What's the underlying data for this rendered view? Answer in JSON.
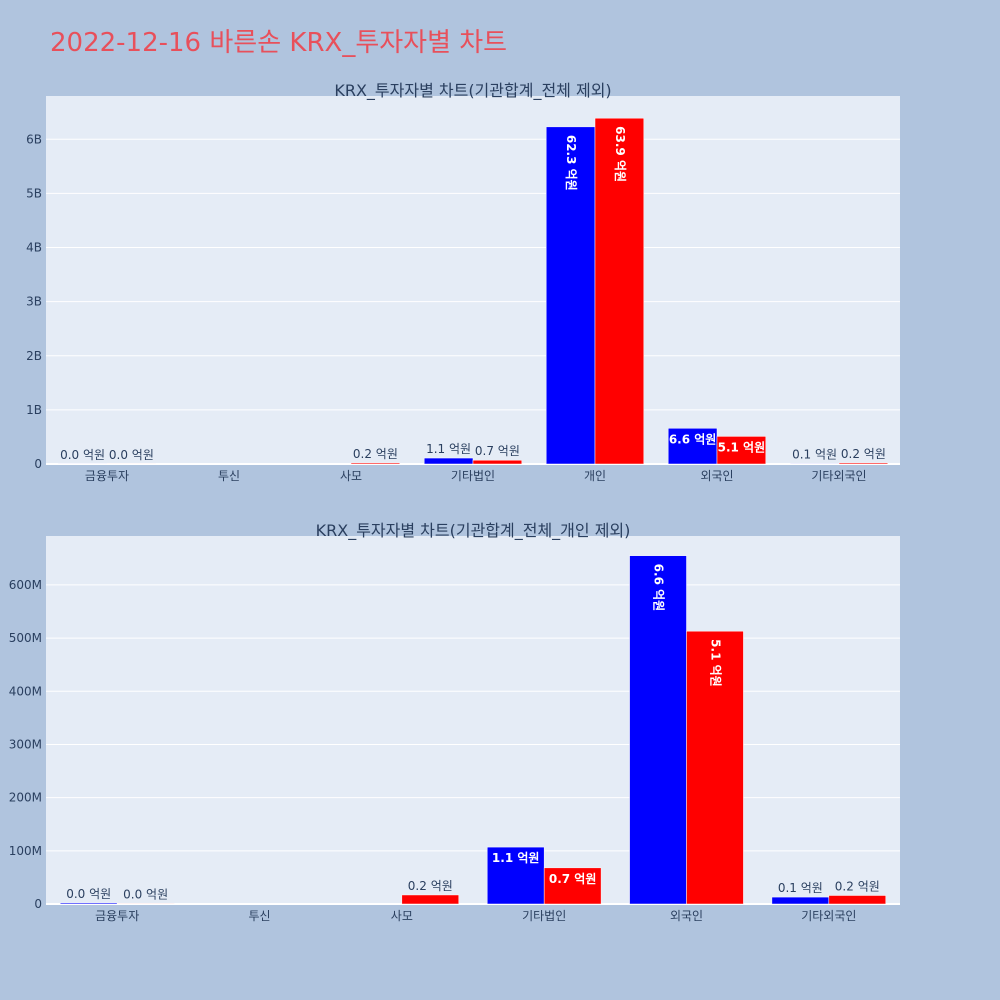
{
  "page": {
    "title": "2022-12-16 바른손 KRX_투자자별 차트"
  },
  "colors": {
    "background": "#b0c4de",
    "plot_bg": "#e5ecf6",
    "series_a": "#0000ff",
    "series_b": "#ff0000",
    "title": "#e8505b",
    "text": "#2a3f5f"
  },
  "chart_data": [
    {
      "type": "bar",
      "title": "KRX_투자자별 차트(기관합계_전체 제외)",
      "categories": [
        "금융투자",
        "투신",
        "사모",
        "기타법인",
        "개인",
        "외국인",
        "기타외국인"
      ],
      "series": [
        {
          "values": [
            2000000,
            0,
            0,
            110000000,
            6230000000,
            660000000,
            10000000
          ],
          "labels": [
            "0.0 억원",
            "",
            "",
            "1.1 억원",
            "62.3 억원",
            "6.6 억원",
            "0.1 억원"
          ]
        },
        {
          "values": [
            1000000,
            0,
            20000000,
            70000000,
            6390000000,
            510000000,
            20000000
          ],
          "labels": [
            "0.0 억원",
            "",
            "0.2 억원",
            "0.7 억원",
            "63.9 억원",
            "5.1 억원",
            "0.2 억원"
          ]
        }
      ],
      "ylim": [
        0,
        6800000000
      ],
      "yticks": [
        0,
        1000000000,
        2000000000,
        3000000000,
        4000000000,
        5000000000,
        6000000000
      ],
      "ytick_labels": [
        "0",
        "1B",
        "2B",
        "3B",
        "4B",
        "5B",
        "6B"
      ],
      "grid": true
    },
    {
      "type": "bar",
      "title": "KRX_투자자별 차트(기관합계_전체_개인 제외)",
      "categories": [
        "금융투자",
        "투신",
        "사모",
        "기타법인",
        "외국인",
        "기타외국인"
      ],
      "series": [
        {
          "values": [
            2000000,
            0,
            0,
            107000000,
            655000000,
            13000000
          ],
          "labels": [
            "0.0 억원",
            "",
            "",
            "1.1 억원",
            "6.6 억원",
            "0.1 억원"
          ]
        },
        {
          "values": [
            1000000,
            0,
            17000000,
            68000000,
            513000000,
            16000000
          ],
          "labels": [
            "0.0 억원",
            "",
            "0.2 억원",
            "0.7 억원",
            "5.1 억원",
            "0.2 억원"
          ]
        }
      ],
      "ylim": [
        0,
        692000000
      ],
      "yticks": [
        0,
        100000000,
        200000000,
        300000000,
        400000000,
        500000000,
        600000000
      ],
      "ytick_labels": [
        "0",
        "100M",
        "200M",
        "300M",
        "400M",
        "500M",
        "600M"
      ],
      "grid": true
    }
  ]
}
